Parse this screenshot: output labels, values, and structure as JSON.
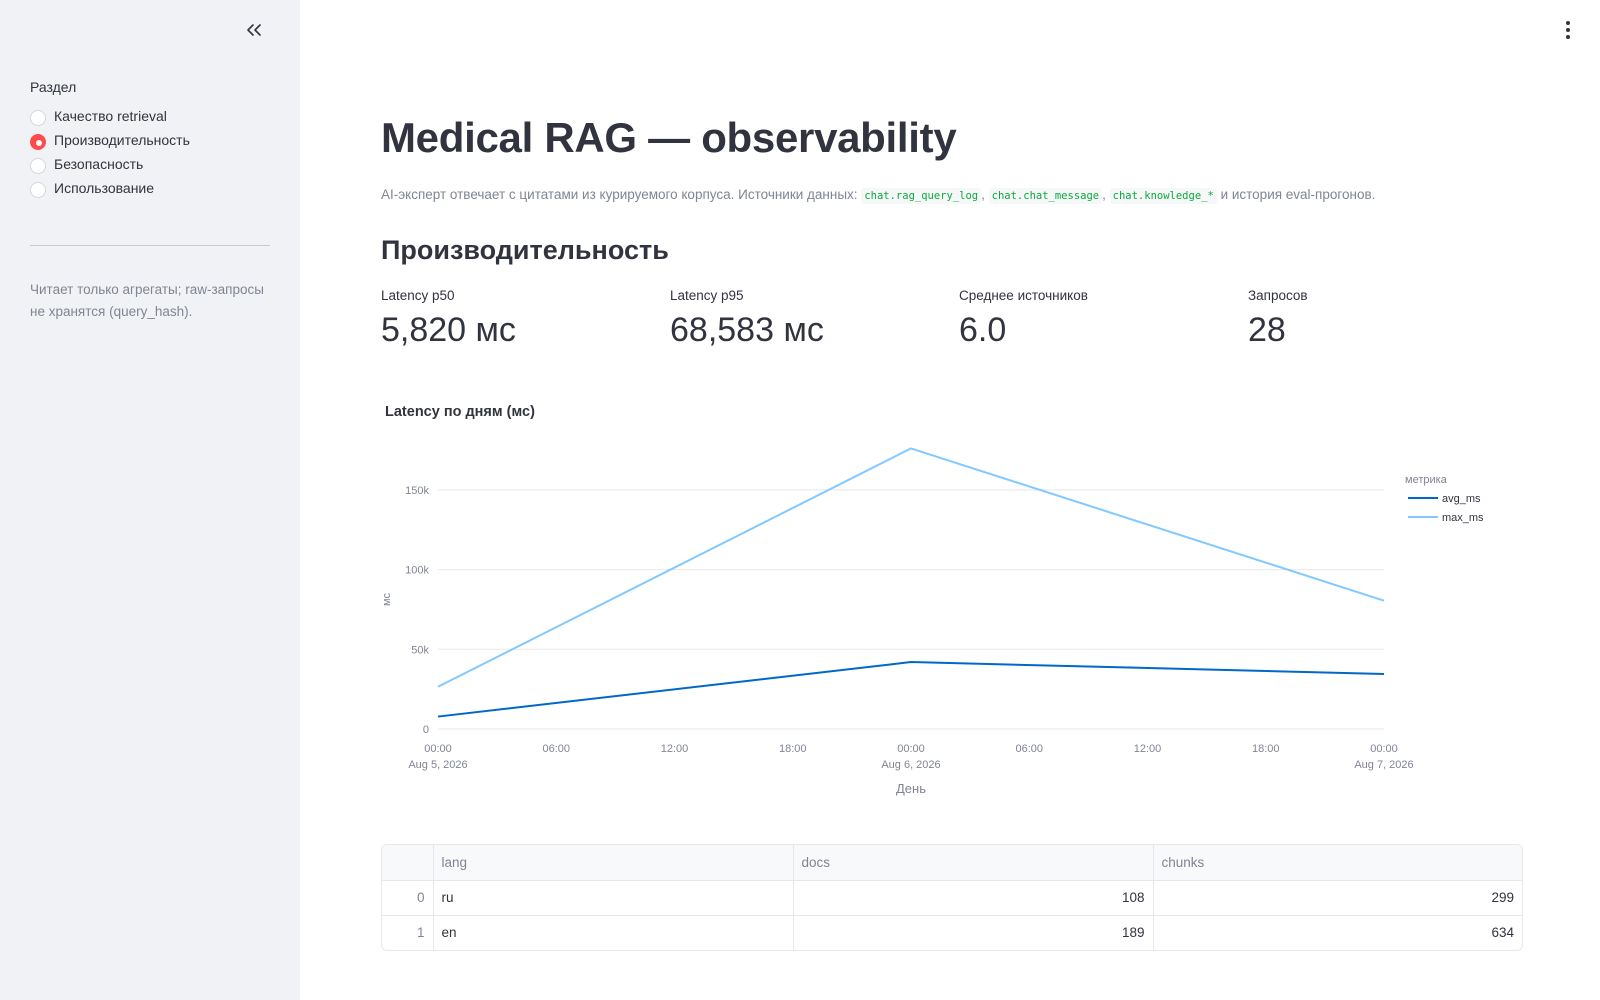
{
  "sidebar": {
    "radio_label": "Раздел",
    "options": [
      {
        "label": "Качество retrieval",
        "selected": false
      },
      {
        "label": "Производительность",
        "selected": true
      },
      {
        "label": "Безопасность",
        "selected": false
      },
      {
        "label": "Использование",
        "selected": false
      }
    ],
    "caption": "Читает только агрегаты; raw-запросы не хранятся (query_hash)."
  },
  "main": {
    "title": "Medical RAG — observability",
    "subtitle": {
      "prefix": "AI-эксперт отвечает с цитатами из курируемого корпуса. Источники данных:",
      "code1": "chat.rag_query_log",
      "sep1": ",",
      "code2": "chat.chat_message",
      "sep2": ",",
      "code3": "chat.knowledge_*",
      "suffix": "и история eval-прогонов."
    },
    "section_title": "Производительность",
    "metrics": [
      {
        "label": "Latency p50",
        "value": "5,820 мс"
      },
      {
        "label": "Latency p95",
        "value": "68,583 мс"
      },
      {
        "label": "Среднее источников",
        "value": "6.0"
      },
      {
        "label": "Запросов",
        "value": "28"
      }
    ]
  },
  "chart_data": {
    "type": "line",
    "title": "Latency по дням (мс)",
    "xlabel": "День",
    "ylabel": "мс",
    "legend_title": "метрика",
    "legend_position": "top-right",
    "x": [
      "2026-08-05",
      "2026-08-06",
      "2026-08-07"
    ],
    "x_tick_labels": [
      {
        "time": "00:00",
        "date": "Aug 5, 2026"
      },
      {
        "time": "06:00",
        "date": ""
      },
      {
        "time": "12:00",
        "date": ""
      },
      {
        "time": "18:00",
        "date": ""
      },
      {
        "time": "00:00",
        "date": "Aug 6, 2026"
      },
      {
        "time": "06:00",
        "date": ""
      },
      {
        "time": "12:00",
        "date": ""
      },
      {
        "time": "18:00",
        "date": ""
      },
      {
        "time": "00:00",
        "date": "Aug 7, 2026"
      }
    ],
    "y_ticks": [
      0,
      50000,
      100000,
      150000
    ],
    "y_tick_labels": [
      "0",
      "50k",
      "100k",
      "150k"
    ],
    "ylim": [
      0,
      175000
    ],
    "grid": true,
    "series": [
      {
        "name": "avg_ms",
        "color": "#0068C9",
        "values": [
          7800,
          42000,
          34500
        ]
      },
      {
        "name": "max_ms",
        "color": "#83C9FF",
        "values": [
          26500,
          176000,
          80500
        ]
      }
    ]
  },
  "table": {
    "columns": [
      "",
      "lang",
      "docs",
      "chunks"
    ],
    "rows": [
      {
        "index": "0",
        "lang": "ru",
        "docs": "108",
        "chunks": "299"
      },
      {
        "index": "1",
        "lang": "en",
        "docs": "189",
        "chunks": "634"
      }
    ]
  },
  "icons": {
    "collapse": "double-chevron-left-icon",
    "menu": "vertical-dots-icon"
  }
}
